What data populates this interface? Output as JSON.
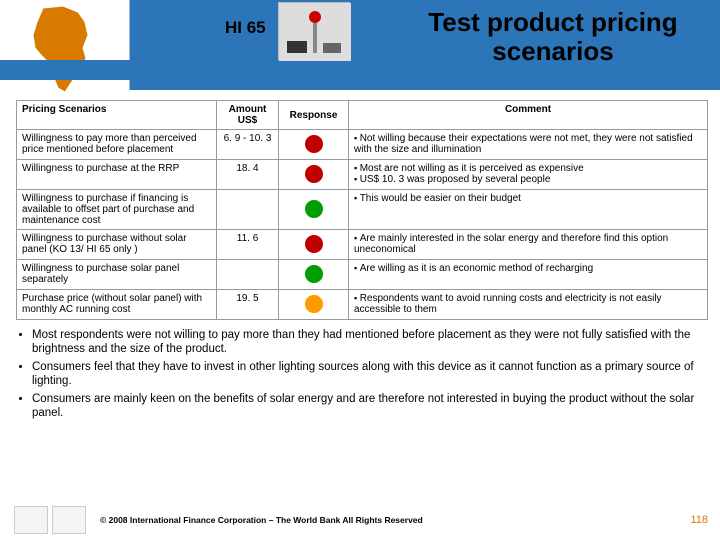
{
  "header": {
    "code": "HI 65",
    "title": "Test product pricing scenarios"
  },
  "table": {
    "headers": [
      "Pricing Scenarios",
      "Amount US$",
      "Response",
      "Comment"
    ],
    "rows": [
      {
        "scenario": "Willingness to pay more than perceived price mentioned before placement",
        "amount": "6. 9 - 10. 3",
        "dot_color": "#c00000",
        "comment": "Not willing because their expectations were not met, they were not satisfied with the size and illumination"
      },
      {
        "scenario": "Willingness to purchase at the RRP",
        "amount": "18. 4",
        "dot_color": "#c00000",
        "comment": "Most are not willing as it is perceived as expensive\n▪ US$ 10. 3 was proposed by several people"
      },
      {
        "scenario": "Willingness to purchase if financing is available to offset part of purchase and maintenance cost",
        "amount": "",
        "dot_color": "#009e00",
        "comment": "This would be easier on their budget"
      },
      {
        "scenario": "Willingness to purchase without solar panel (KO 13/ HI 65 only )",
        "amount": "11. 6",
        "dot_color": "#c00000",
        "comment": "Are mainly interested in the solar energy and therefore find this option  uneconomical"
      },
      {
        "scenario": "Willingness to purchase solar panel separately",
        "amount": "",
        "dot_color": "#009e00",
        "comment": "Are willing as it is an economic method of recharging"
      },
      {
        "scenario": "Purchase price (without solar panel) with monthly  AC running cost",
        "amount": "19. 5",
        "dot_color": "#ff9900",
        "comment": "Respondents want to avoid running costs and electricity is not easily accessible to them"
      }
    ]
  },
  "bullets": [
    "Most  respondents were not willing to pay more than they had mentioned before placement as they were not fully satisfied with the brightness and the size of the product.",
    "Consumers feel that they have to invest in other lighting sources along with this device as it cannot function as a primary source of lighting.",
    "Consumers are mainly keen on the benefits of solar energy and are therefore not interested in buying the product without the solar panel."
  ],
  "footer": {
    "copyright": "© 2008 International Finance Corporation – The World Bank All Rights Reserved",
    "page": "118"
  },
  "colors": {
    "header_blue": "#2b75b8",
    "africa_fill": "#d97a00"
  }
}
